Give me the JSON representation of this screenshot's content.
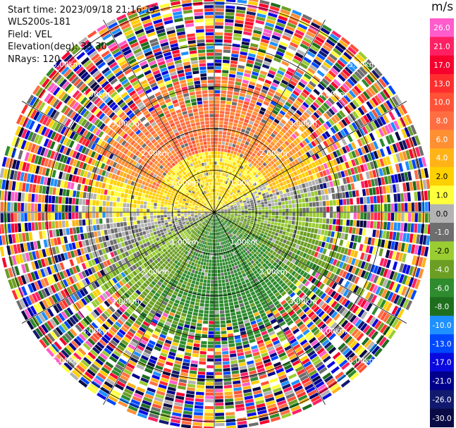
{
  "header": {
    "start_time": "Start time: 2023/09/18 21:16:17",
    "instrument": "WLS200s-181",
    "field": "Field: VEL",
    "elevation": "Elevation(deg): 35.30",
    "nrays": "NRays: 120"
  },
  "colorbar": {
    "unit": "m/s",
    "ticks": [
      "26.0",
      "21.0",
      "17.0",
      "13.0",
      "10.0",
      "8.0",
      "6.0",
      "4.0",
      "2.0",
      "1.0",
      "0.0",
      "-1.0",
      "-2.0",
      "-4.0",
      "-6.0",
      "-8.0",
      "-10.0",
      "-13.0",
      "-17.0",
      "-21.0",
      "-26.0",
      "-30.0"
    ],
    "colors": [
      "#ff5ccc",
      "#ff1f63",
      "#f7002e",
      "#ff2e2e",
      "#ff5236",
      "#ff6e42",
      "#ff8f33",
      "#ffb319",
      "#ffd000",
      "#ffff3b",
      "#b3b3b3",
      "#6e6e6e",
      "#9acd32",
      "#6b9e23",
      "#2e8b2e",
      "#1e6e1e",
      "#1e90ff",
      "#0048ff",
      "#0a0adf",
      "#00008b",
      "#111a6e",
      "#0a0a45"
    ]
  },
  "chart_data": {
    "type": "heatmap",
    "projection": "polar PPI",
    "field": "VEL",
    "units": "m/s",
    "nrays": 120,
    "range_ring_labels": [
      "1.00km",
      "2.00km",
      "3.00km",
      "4.00km",
      "5.00km"
    ],
    "range_rings_km": [
      1,
      2,
      3,
      4,
      5
    ],
    "max_range_km": 5.2,
    "colorbar_ticks": [
      26,
      21,
      17,
      13,
      10,
      8,
      6,
      4,
      2,
      1,
      0,
      -1,
      -2,
      -4,
      -6,
      -8,
      -10,
      -13,
      -17,
      -21,
      -26,
      -30
    ],
    "velocity_pattern": {
      "inner_core_km": 2.6,
      "north_sector": "positive, 2 to 10 m/s",
      "west_sector": "weak positive, about 2 m/s",
      "east_sector": "weak negative, about -1 to -2 m/s",
      "south_sector": "negative, about -2 to -6 m/s",
      "outer_range": "noise across full scale, -30 to 26 m/s"
    }
  }
}
